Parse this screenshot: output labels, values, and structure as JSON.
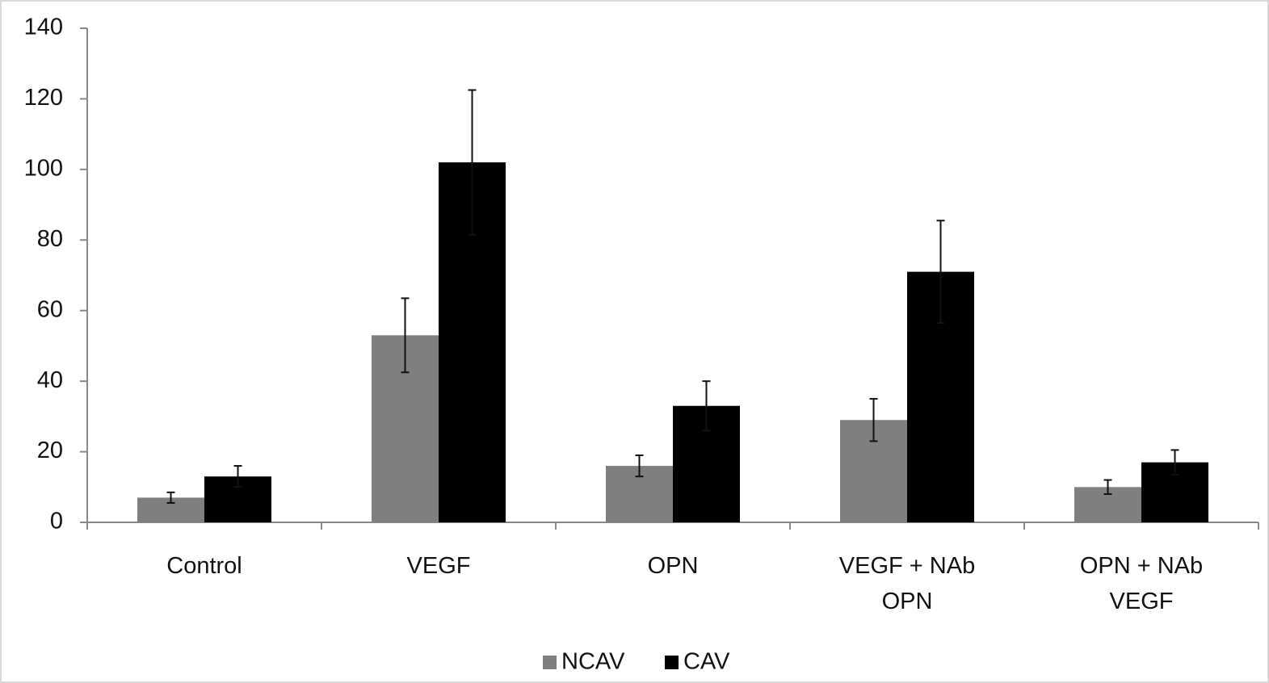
{
  "chart_data": {
    "type": "bar",
    "categories": [
      [
        "Control"
      ],
      [
        "VEGF"
      ],
      [
        "OPN"
      ],
      [
        "VEGF + NAb",
        "OPN"
      ],
      [
        "OPN + NAb",
        "VEGF"
      ]
    ],
    "series": [
      {
        "name": "NCAV",
        "color": "#7f7f7f",
        "values": [
          7,
          53,
          16,
          29,
          10
        ],
        "errors": [
          1.5,
          10.5,
          3,
          6,
          2
        ]
      },
      {
        "name": "CAV",
        "color": "#000000",
        "values": [
          13,
          102,
          33,
          71,
          17
        ],
        "errors": [
          3,
          20.5,
          7,
          14.5,
          3.5
        ]
      }
    ],
    "ylim": [
      0,
      140
    ],
    "yticks": [
      0,
      20,
      40,
      60,
      80,
      100,
      120,
      140
    ],
    "grid": false,
    "legend": "bottom-center"
  }
}
